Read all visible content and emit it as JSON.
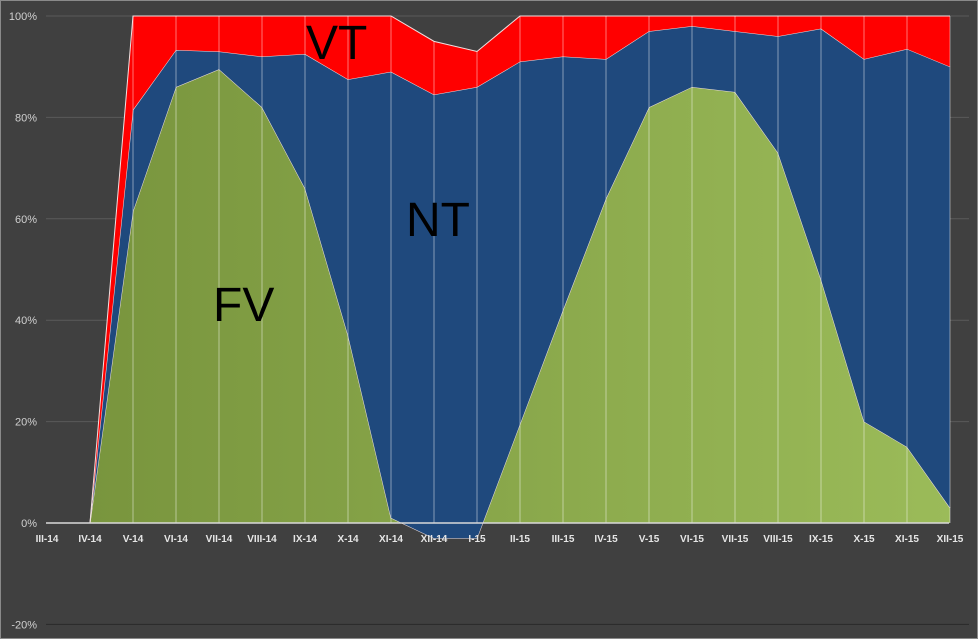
{
  "chart_data": {
    "type": "area",
    "stacked": true,
    "title": "",
    "xlabel": "",
    "ylabel": "",
    "ylim": [
      -20,
      100
    ],
    "y_ticks": [
      "-20%",
      "0%",
      "20%",
      "40%",
      "60%",
      "80%",
      "100%"
    ],
    "grid": true,
    "categories": [
      "III-14",
      "IV-14",
      "V-14",
      "VI-14",
      "VII-14",
      "VIII-14",
      "IX-14",
      "X-14",
      "XI-14",
      "XII-14",
      "I-15",
      "II-15",
      "III-15",
      "IV-15",
      "V-15",
      "VI-15",
      "VII-15",
      "VIII-15",
      "IX-15",
      "X-15",
      "XI-15",
      "XII-15"
    ],
    "series": [
      {
        "name": "FV",
        "color": "#77933c",
        "color2": "#9bbb59",
        "values": [
          0,
          0,
          61.5,
          86,
          89.5,
          82,
          66,
          37,
          1,
          -3,
          -3,
          19.5,
          42,
          64,
          82,
          86,
          85,
          73,
          48,
          20,
          15,
          3
        ]
      },
      {
        "name": "NT",
        "color": "#1f497d",
        "values": [
          0,
          0,
          20,
          7.3,
          3.5,
          10,
          26.5,
          50.5,
          88,
          87.5,
          89,
          71.5,
          50,
          27.5,
          15,
          12,
          12,
          23,
          49.5,
          71.5,
          78.5,
          87
        ]
      },
      {
        "name": "VT",
        "color": "#ff0000",
        "values": [
          0,
          0,
          18.5,
          6.7,
          7,
          8,
          7.5,
          12.5,
          11,
          10.5,
          7,
          9,
          8,
          8.5,
          3,
          2,
          3,
          4,
          2.5,
          8.5,
          6.5,
          10
        ]
      }
    ],
    "annotations": [
      "VT",
      "NT",
      "FV"
    ]
  }
}
